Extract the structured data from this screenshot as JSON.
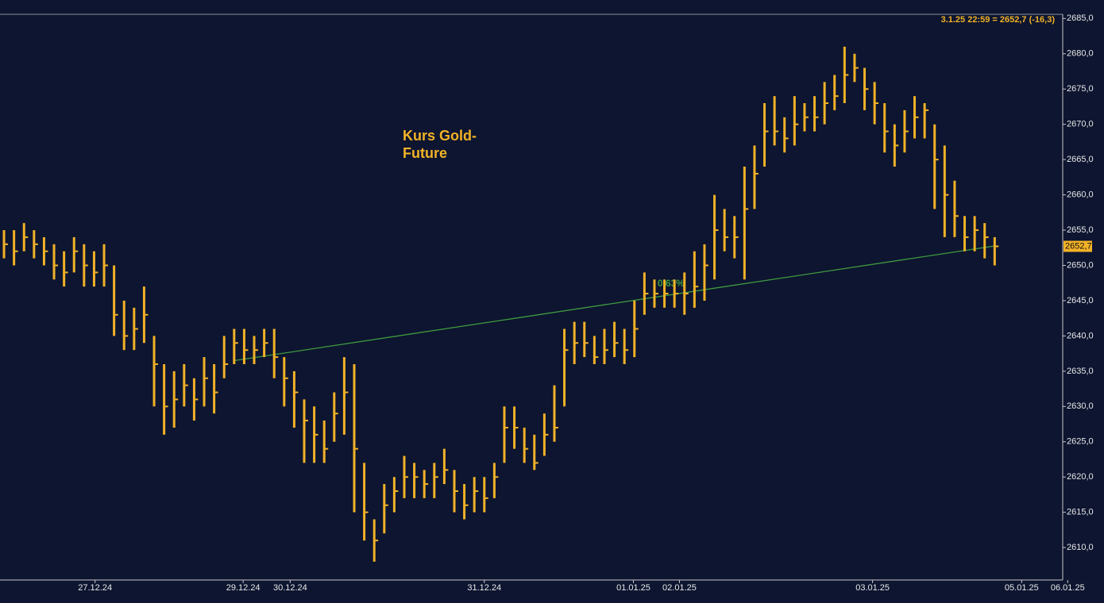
{
  "chart_data": {
    "type": "hlc",
    "title": "Kurs Gold-\nFuture",
    "annotation": "3.1.25 22:59 = 2652,7 (-16,3)",
    "last_price": {
      "value": 2652.7,
      "label": "2652,7"
    },
    "color": "#f2b227",
    "high": [
      2655,
      2655,
      2656,
      2655,
      2654,
      2653,
      2652,
      2654,
      2653,
      2652,
      2653,
      2650,
      2645,
      2644,
      2647,
      2640,
      2636,
      2635,
      2636,
      2634,
      2637,
      2636,
      2640,
      2641,
      2641,
      2640,
      2641,
      2641,
      2637,
      2635,
      2631,
      2630,
      2628,
      2632,
      2637,
      2636,
      2622,
      2614,
      2619,
      2620,
      2623,
      2622,
      2621,
      2622,
      2624,
      2621,
      2619,
      2620,
      2620,
      2622,
      2630,
      2630,
      2627,
      2626,
      2629,
      2633,
      2641,
      2642,
      2642,
      2640,
      2641,
      2642,
      2641,
      2645,
      2649,
      2648,
      2648,
      2648,
      2649,
      2652,
      2653,
      2660,
      2658,
      2657,
      2664,
      2667,
      2673,
      2674,
      2671,
      2674,
      2673,
      2674,
      2676,
      2677,
      2681,
      2680,
      2678,
      2676,
      2673,
      2670,
      2672,
      2674,
      2673,
      2670,
      2667,
      2662,
      2657,
      2657,
      2656,
      2654
    ],
    "low": [
      2651,
      2650,
      2652,
      2651,
      2650,
      2648,
      2647,
      2649,
      2647,
      2647,
      2647,
      2640,
      2638,
      2638,
      2639,
      2630,
      2626,
      2627,
      2630,
      2628,
      2630,
      2629,
      2634,
      2636,
      2636,
      2636,
      2637,
      2634,
      2630,
      2627,
      2622,
      2622,
      2622,
      2625,
      2626,
      2615,
      2611,
      2608,
      2612,
      2615,
      2617,
      2617,
      2617,
      2617,
      2619,
      2615,
      2614,
      2615,
      2615,
      2617,
      2622,
      2624,
      2622,
      2621,
      2623,
      2625,
      2630,
      2636,
      2637,
      2636,
      2636,
      2637,
      2636,
      2637,
      2643,
      2644,
      2644,
      2644,
      2643,
      2644,
      2645,
      2648,
      2652,
      2651,
      2648,
      2658,
      2664,
      2667,
      2666,
      2667,
      2669,
      2669,
      2670,
      2672,
      2673,
      2676,
      2672,
      2670,
      2666,
      2664,
      2666,
      2668,
      2668,
      2658,
      2654,
      2654,
      2652,
      2652,
      2651,
      2650
    ],
    "close": [
      2653,
      2652,
      2654,
      2653,
      2652,
      2650,
      2649,
      2652,
      2650,
      2649,
      2650,
      2643,
      2640,
      2641,
      2643,
      2636,
      2630,
      2631,
      2633,
      2631,
      2634,
      2632,
      2636,
      2639,
      2638,
      2638,
      2639,
      2637,
      2634,
      2632,
      2628,
      2626,
      2624,
      2629,
      2632,
      2624,
      2615,
      2611,
      2616,
      2618,
      2620,
      2620,
      2619,
      2620,
      2621,
      2618,
      2616,
      2618,
      2617,
      2620,
      2627,
      2627,
      2624,
      2622,
      2626,
      2627,
      2638,
      2639,
      2639,
      2637,
      2638,
      2639,
      2638,
      2641,
      2646,
      2646,
      2646,
      2646,
      2646,
      2647,
      2650,
      2655,
      2654,
      2654,
      2658,
      2663,
      2669,
      2669,
      2668,
      2670,
      2671,
      2671,
      2673,
      2674,
      2677,
      2678,
      2675,
      2673,
      2669,
      2667,
      2669,
      2671,
      2672,
      2665,
      2660,
      2657,
      2654,
      2655,
      2654,
      2652.7
    ],
    "trendline": {
      "label": "0,63%",
      "x": [
        23,
        99.2
      ],
      "y": [
        2636.5,
        2652.8
      ],
      "color": "#3f9a3f"
    },
    "xlim": [
      -0.4,
      105.8
    ],
    "xticks": [
      {
        "value": 9.1,
        "label": "27.12.24"
      },
      {
        "value": 23.9,
        "label": "29.12.24"
      },
      {
        "value": 28.6,
        "label": "30.12.24"
      },
      {
        "value": 48,
        "label": "31.12.24"
      },
      {
        "value": 62.9,
        "label": "01.01.25"
      },
      {
        "value": 67.5,
        "label": "02.01.25"
      },
      {
        "value": 86.8,
        "label": "03.01.25"
      },
      {
        "value": 101.7,
        "label": "05.01.25"
      },
      {
        "value": 106.3,
        "label": "06.01.25"
      }
    ],
    "ylim": [
      2605.4,
      2685.6
    ],
    "yticks": [
      {
        "value": 2610,
        "label": "2610,0"
      },
      {
        "value": 2615,
        "label": "2615,0"
      },
      {
        "value": 2620,
        "label": "2620,0"
      },
      {
        "value": 2625,
        "label": "2625,0"
      },
      {
        "value": 2630,
        "label": "2630,0"
      },
      {
        "value": 2635,
        "label": "2635,0"
      },
      {
        "value": 2640,
        "label": "2640,0"
      },
      {
        "value": 2645,
        "label": "2645,0"
      },
      {
        "value": 2650,
        "label": "2650,0"
      },
      {
        "value": 2655,
        "label": "2655,0"
      },
      {
        "value": 2660,
        "label": "2660,0"
      },
      {
        "value": 2665,
        "label": "2665,0"
      },
      {
        "value": 2670,
        "label": "2670,0"
      },
      {
        "value": 2675,
        "label": "2675,0"
      },
      {
        "value": 2680,
        "label": "2680,0"
      },
      {
        "value": 2685,
        "label": "2685,0"
      }
    ]
  }
}
